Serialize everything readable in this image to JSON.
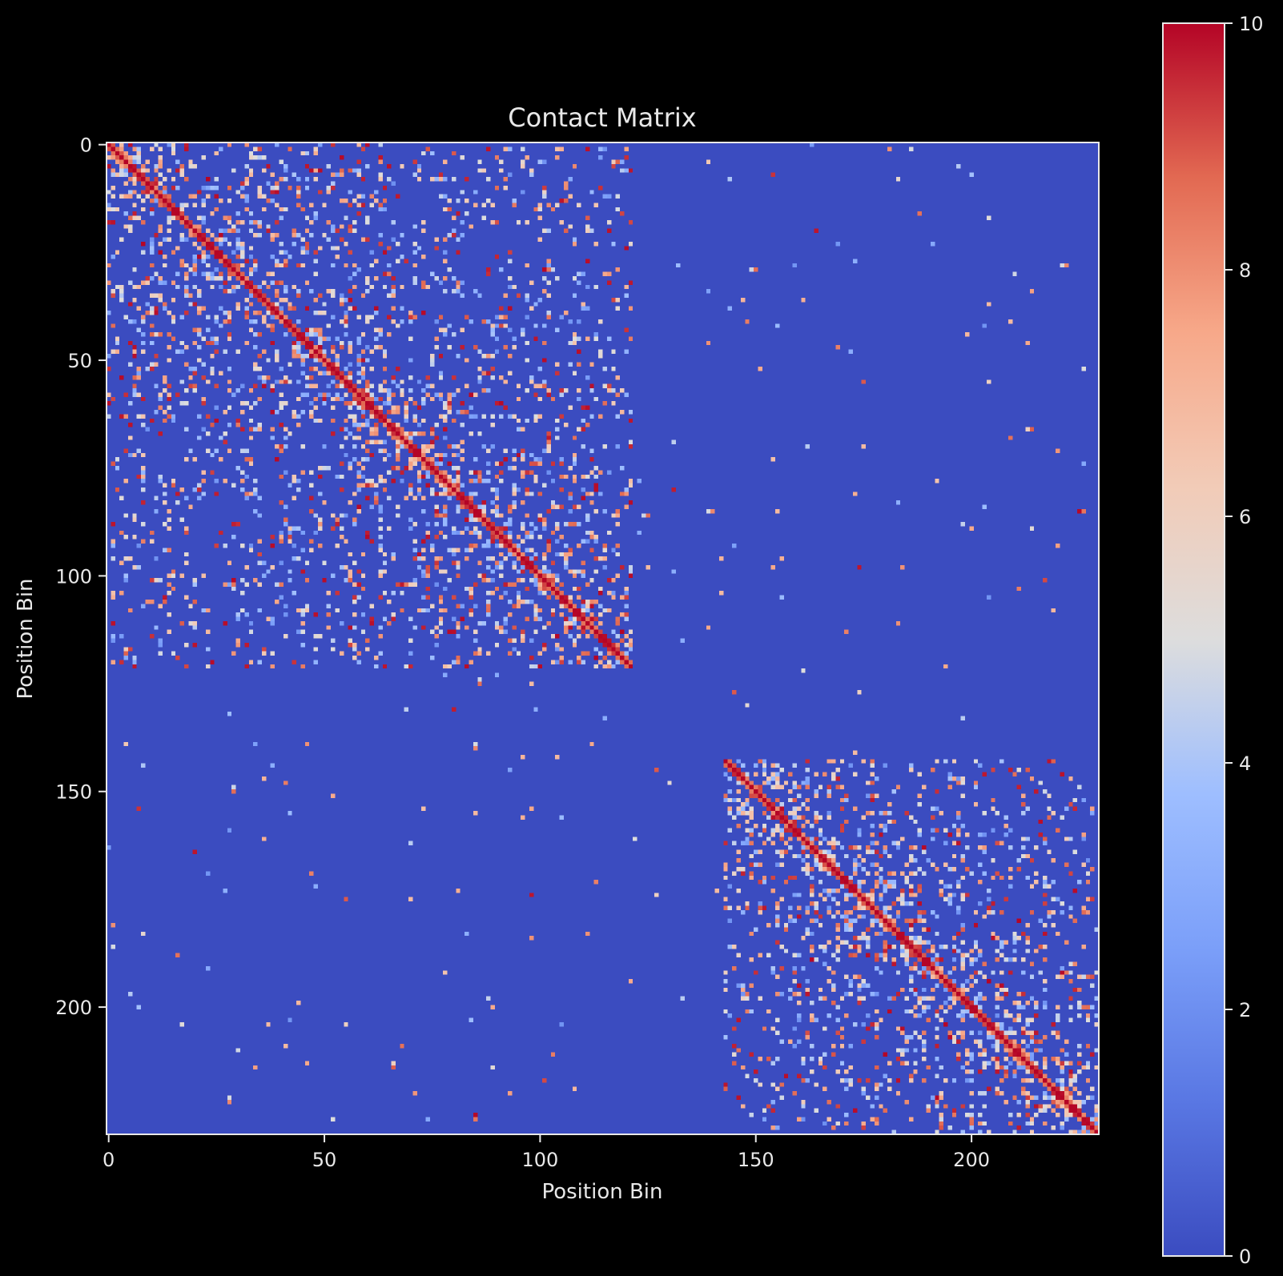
{
  "chart_data": {
    "type": "heatmap",
    "title": "Contact Matrix",
    "xlabel": "Position Bin",
    "ylabel": "Position Bin",
    "n_bins": 230,
    "x_ticks": [
      0,
      50,
      100,
      150,
      200
    ],
    "y_ticks": [
      0,
      50,
      100,
      150,
      200
    ],
    "xlim": [
      0,
      229
    ],
    "ylim": [
      229,
      0
    ],
    "colormap": "coolwarm",
    "vmin": 0,
    "vmax": 10,
    "colorbar_ticks": [
      0,
      2,
      4,
      6,
      8,
      10
    ],
    "background_value": 0,
    "diagonal_value": 10,
    "domains": [
      {
        "start": 0,
        "end": 121,
        "density": 0.08
      },
      {
        "start": 143,
        "end": 229,
        "density": 0.08
      }
    ],
    "inter_domain_density": 0.006,
    "colors": {
      "figure_background": "#000000",
      "axes_color": "#e8e8e8",
      "cmap_low": "#3b4cc0",
      "cmap_mid": "#dddddd",
      "cmap_high": "#b40426"
    }
  }
}
